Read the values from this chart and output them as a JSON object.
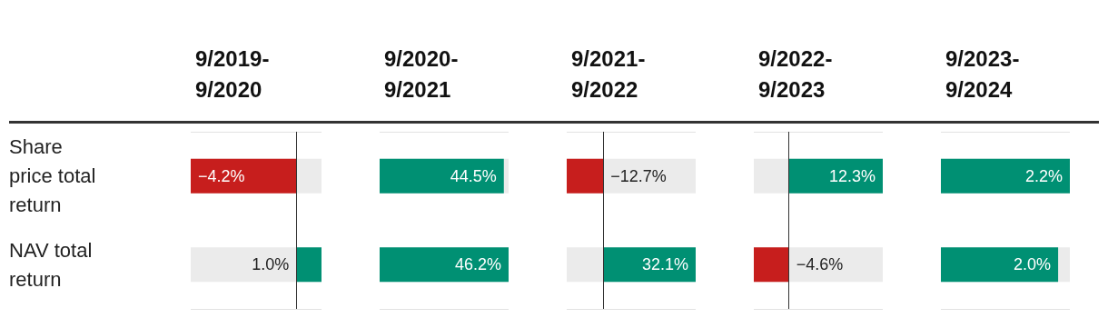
{
  "chart_data": [
    {
      "type": "bar",
      "orientation": "horizontal",
      "title": "9/2019-9/2020",
      "categories": [
        "Share price total return",
        "NAV total return"
      ],
      "values": [
        -4.2,
        1.0
      ],
      "colors": [
        "#c71e1d",
        "#009073"
      ],
      "value_labels": [
        "−4.2%",
        "1.0%"
      ],
      "xlim": [
        -4.2,
        1.0
      ],
      "ref_lines": [
        {
          "axis": "x",
          "value": 0
        }
      ],
      "tick_labels": "y",
      "grid": "y"
    },
    {
      "type": "bar",
      "orientation": "horizontal",
      "title": "9/2020-9/2021",
      "categories": [
        "Share price total return",
        "NAV total return"
      ],
      "values": [
        44.5,
        46.2
      ],
      "colors": [
        "#009073",
        "#009073"
      ],
      "value_labels": [
        "44.5%",
        "46.2%"
      ],
      "xlim": [
        0,
        46.2
      ],
      "tick_labels": false,
      "grid": "y"
    },
    {
      "type": "bar",
      "orientation": "horizontal",
      "title": "9/2021-9/2022",
      "categories": [
        "Share price total return",
        "NAV total return"
      ],
      "values": [
        -12.7,
        32.1
      ],
      "colors": [
        "#c71e1d",
        "#009073"
      ],
      "value_labels": [
        "−12.7%",
        "32.1%"
      ],
      "xlim": [
        -12.7,
        32.1
      ],
      "ref_lines": [
        {
          "axis": "x",
          "value": 0
        }
      ],
      "tick_labels": false,
      "grid": "y"
    },
    {
      "type": "bar",
      "orientation": "horizontal",
      "title": "9/2022-9/2023",
      "categories": [
        "Share price total return",
        "NAV total return"
      ],
      "values": [
        12.3,
        -4.6
      ],
      "colors": [
        "#009073",
        "#c71e1d"
      ],
      "value_labels": [
        "12.3%",
        "−4.6%"
      ],
      "xlim": [
        -4.6,
        12.3
      ],
      "ref_lines": [
        {
          "axis": "x",
          "value": 0
        }
      ],
      "tick_labels": false,
      "grid": "y"
    },
    {
      "type": "bar",
      "orientation": "horizontal",
      "title": "9/2023-9/2024",
      "categories": [
        "Share price total return",
        "NAV total return"
      ],
      "values": [
        2.2,
        2.0
      ],
      "colors": [
        "#009073",
        "#009073"
      ],
      "value_labels": [
        "2.2%",
        "2.0%"
      ],
      "xlim": [
        0,
        2.2
      ],
      "tick_labels": false,
      "grid": "y"
    }
  ]
}
